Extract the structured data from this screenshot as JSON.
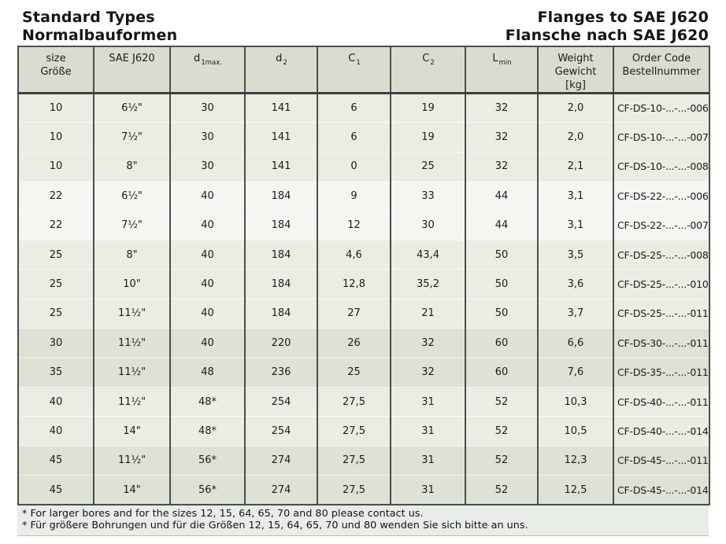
{
  "header": {
    "title_en": "Standard Types",
    "title_de": "Normalbauformen",
    "right_en": "Flanges to SAE J620",
    "right_de": "Flansche nach SAE J620"
  },
  "table": {
    "columns": [
      {
        "id": "size",
        "lines": [
          "size",
          "Größe"
        ]
      },
      {
        "id": "sae",
        "lines": [
          "SAE J620"
        ]
      },
      {
        "id": "d1",
        "base": "d",
        "sub": "1max."
      },
      {
        "id": "d2",
        "base": "d",
        "sub": "2"
      },
      {
        "id": "c1",
        "base": "C",
        "sub": "1"
      },
      {
        "id": "c2",
        "base": "C",
        "sub": "2"
      },
      {
        "id": "lmin",
        "base": "L",
        "sub": "min"
      },
      {
        "id": "weight",
        "lines": [
          "Weight",
          "Gewicht",
          "[kg]"
        ]
      },
      {
        "id": "order",
        "lines": [
          "Order Code",
          "Bestellnummer"
        ]
      }
    ],
    "rows": [
      {
        "size": "10",
        "sae": "6½\"",
        "d1": "30",
        "d2": "141",
        "c1": "6",
        "c2": "19",
        "lmin": "32",
        "weight": "2,0",
        "order": "CF-DS-10-...-...-006",
        "band": "m"
      },
      {
        "size": "10",
        "sae": "7½\"",
        "d1": "30",
        "d2": "141",
        "c1": "6",
        "c2": "19",
        "lmin": "32",
        "weight": "2,0",
        "order": "CF-DS-10-...-...-007",
        "band": "m"
      },
      {
        "size": "10",
        "sae": "8\"",
        "d1": "30",
        "d2": "141",
        "c1": "0",
        "c2": "25",
        "lmin": "32",
        "weight": "2,1",
        "order": "CF-DS-10-...-...-008",
        "band": "m"
      },
      {
        "size": "22",
        "sae": "6½\"",
        "d1": "40",
        "d2": "184",
        "c1": "9",
        "c2": "33",
        "lmin": "44",
        "weight": "3,1",
        "order": "CF-DS-22-...-...-006",
        "band": "l"
      },
      {
        "size": "22",
        "sae": "7½\"",
        "d1": "40",
        "d2": "184",
        "c1": "12",
        "c2": "30",
        "lmin": "44",
        "weight": "3,1",
        "order": "CF-DS-22-...-...-007",
        "band": "l"
      },
      {
        "size": "25",
        "sae": "8\"",
        "d1": "40",
        "d2": "184",
        "c1": "4,6",
        "c2": "43,4",
        "lmin": "50",
        "weight": "3,5",
        "order": "CF-DS-25-...-...-008",
        "band": "m"
      },
      {
        "size": "25",
        "sae": "10\"",
        "d1": "40",
        "d2": "184",
        "c1": "12,8",
        "c2": "35,2",
        "lmin": "50",
        "weight": "3,6",
        "order": "CF-DS-25-...-...-010",
        "band": "m"
      },
      {
        "size": "25",
        "sae": "11½\"",
        "d1": "40",
        "d2": "184",
        "c1": "27",
        "c2": "21",
        "lmin": "50",
        "weight": "3,7",
        "order": "CF-DS-25-...-...-011",
        "band": "m"
      },
      {
        "size": "30",
        "sae": "11½\"",
        "d1": "40",
        "d2": "220",
        "c1": "26",
        "c2": "32",
        "lmin": "60",
        "weight": "6,6",
        "order": "CF-DS-30-...-...-011",
        "band": "d"
      },
      {
        "size": "35",
        "sae": "11½\"",
        "d1": "48",
        "d2": "236",
        "c1": "25",
        "c2": "32",
        "lmin": "60",
        "weight": "7,6",
        "order": "CF-DS-35-...-...-011",
        "band": "d"
      },
      {
        "size": "40",
        "sae": "11½\"",
        "d1": "48*",
        "d2": "254",
        "c1": "27,5",
        "c2": "31",
        "lmin": "52",
        "weight": "10,3",
        "order": "CF-DS-40-...-...-011",
        "band": "m"
      },
      {
        "size": "40",
        "sae": "14\"",
        "d1": "48*",
        "d2": "254",
        "c1": "27,5",
        "c2": "31",
        "lmin": "52",
        "weight": "10,5",
        "order": "CF-DS-40-...-...-014",
        "band": "m"
      },
      {
        "size": "45",
        "sae": "11½\"",
        "d1": "56*",
        "d2": "274",
        "c1": "27,5",
        "c2": "31",
        "lmin": "52",
        "weight": "12,3",
        "order": "CF-DS-45-...-...-011",
        "band": "d"
      },
      {
        "size": "45",
        "sae": "14\"",
        "d1": "56*",
        "d2": "274",
        "c1": "27,5",
        "c2": "31",
        "lmin": "52",
        "weight": "12,5",
        "order": "CF-DS-45-...-...-014",
        "band": "d"
      }
    ]
  },
  "footnotes": {
    "en": "* For larger bores and for the sizes 12, 15, 64, 65, 70 and 80 please contact us.",
    "de": "* Für größere Bohrungen und für die Größen 12, 15, 64, 65, 70 und 80 wenden Sie sich bitte an uns."
  },
  "colors": {
    "text": "#1c1c1c",
    "border": "#4d4d4d",
    "header_bg": "#d9ddd0",
    "band_medium": "#eaede3",
    "band_light": "#f4f6f1",
    "band_dark": "#dde2d4",
    "footnote_bg": "#e8ede7"
  }
}
